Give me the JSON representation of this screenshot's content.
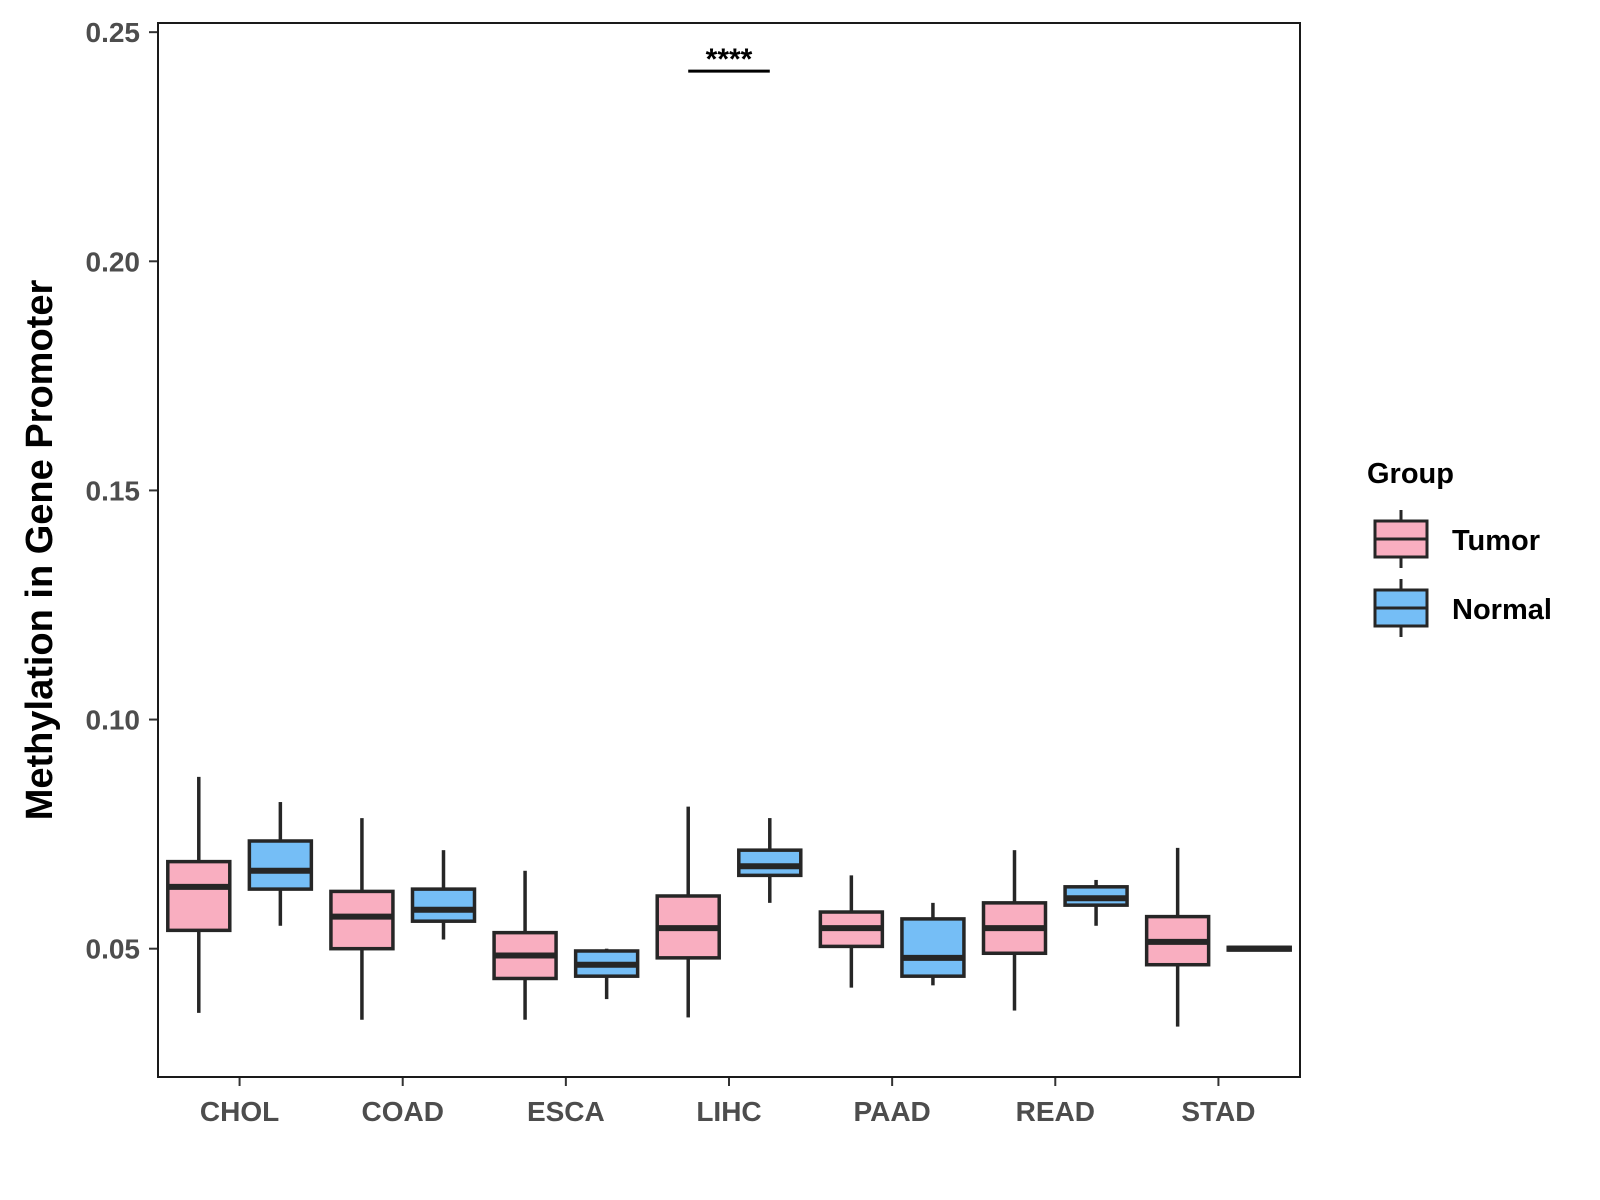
{
  "chart_data": {
    "type": "boxplot",
    "title": "",
    "xlabel": "",
    "ylabel": "Methylation in Gene Promoter",
    "ylim": [
      0.022,
      0.252
    ],
    "yticks": [
      0.05,
      0.1,
      0.15,
      0.2,
      0.25
    ],
    "ytick_labels": [
      "0.05",
      "0.10",
      "0.15",
      "0.20",
      "0.25"
    ],
    "categories": [
      "CHOL",
      "COAD",
      "ESCA",
      "LIHC",
      "PAAD",
      "READ",
      "STAD"
    ],
    "legend": {
      "title": "Group",
      "position": "right",
      "entries": [
        {
          "name": "Tumor",
          "color": "#F9AEC0"
        },
        {
          "name": "Normal",
          "color": "#75BEF6"
        }
      ]
    },
    "series": [
      {
        "name": "Tumor",
        "color": "#F9AEC0",
        "boxes": [
          {
            "category": "CHOL",
            "whisker_low": 0.036,
            "q1": 0.054,
            "median": 0.0635,
            "q3": 0.069,
            "whisker_high": 0.0875
          },
          {
            "category": "COAD",
            "whisker_low": 0.0345,
            "q1": 0.05,
            "median": 0.057,
            "q3": 0.0625,
            "whisker_high": 0.0785
          },
          {
            "category": "ESCA",
            "whisker_low": 0.0345,
            "q1": 0.0435,
            "median": 0.0485,
            "q3": 0.0535,
            "whisker_high": 0.067
          },
          {
            "category": "LIHC",
            "whisker_low": 0.035,
            "q1": 0.048,
            "median": 0.0545,
            "q3": 0.0615,
            "whisker_high": 0.081
          },
          {
            "category": "PAAD",
            "whisker_low": 0.0415,
            "q1": 0.0505,
            "median": 0.0545,
            "q3": 0.058,
            "whisker_high": 0.066
          },
          {
            "category": "READ",
            "whisker_low": 0.0365,
            "q1": 0.049,
            "median": 0.0545,
            "q3": 0.06,
            "whisker_high": 0.0715
          },
          {
            "category": "STAD",
            "whisker_low": 0.033,
            "q1": 0.0465,
            "median": 0.0515,
            "q3": 0.057,
            "whisker_high": 0.072
          }
        ]
      },
      {
        "name": "Normal",
        "color": "#75BEF6",
        "boxes": [
          {
            "category": "CHOL",
            "whisker_low": 0.055,
            "q1": 0.063,
            "median": 0.067,
            "q3": 0.0735,
            "whisker_high": 0.082
          },
          {
            "category": "COAD",
            "whisker_low": 0.052,
            "q1": 0.056,
            "median": 0.0585,
            "q3": 0.063,
            "whisker_high": 0.0715
          },
          {
            "category": "ESCA",
            "whisker_low": 0.039,
            "q1": 0.044,
            "median": 0.0465,
            "q3": 0.0495,
            "whisker_high": 0.05
          },
          {
            "category": "LIHC",
            "whisker_low": 0.06,
            "q1": 0.066,
            "median": 0.068,
            "q3": 0.0715,
            "whisker_high": 0.0785
          },
          {
            "category": "PAAD",
            "whisker_low": 0.042,
            "q1": 0.044,
            "median": 0.048,
            "q3": 0.0565,
            "whisker_high": 0.06
          },
          {
            "category": "READ",
            "whisker_low": 0.055,
            "q1": 0.0595,
            "median": 0.061,
            "q3": 0.0635,
            "whisker_high": 0.065
          },
          {
            "category": "STAD",
            "whisker_low": 0.0497,
            "q1": 0.0497,
            "median": 0.05,
            "q3": 0.0503,
            "whisker_high": 0.0503
          }
        ]
      }
    ],
    "annotations": [
      {
        "category": "LIHC",
        "text": "****",
        "y": 0.2415
      }
    ]
  }
}
